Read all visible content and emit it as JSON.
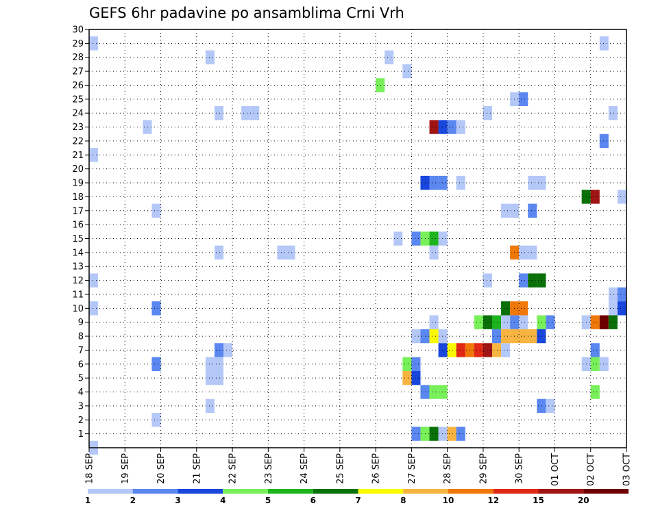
{
  "chart_data": {
    "type": "heatmap",
    "title": "GEFS 6hr padavine po ansamblima Crni Vrh",
    "xlabel": "",
    "ylabel": "",
    "x_ticks": [
      "18 SEP",
      "19 SEP",
      "20 SEP",
      "21 SEP",
      "22 SEP",
      "23 SEP",
      "24 SEP",
      "25 SEP",
      "26 SEP",
      "27 SEP",
      "28 SEP",
      "29 SEP",
      "30 SEP",
      "01 OCT",
      "02 OCT",
      "03 OCT"
    ],
    "y_ticks": [
      "1",
      "2",
      "3",
      "4",
      "5",
      "6",
      "7",
      "8",
      "9",
      "10",
      "11",
      "12",
      "13",
      "14",
      "15",
      "16",
      "17",
      "18",
      "19",
      "20",
      "21",
      "22",
      "23",
      "24",
      "25",
      "26",
      "27",
      "28",
      "29",
      "30"
    ],
    "xlim": [
      0,
      60
    ],
    "ylim": [
      0,
      30
    ],
    "grid": true,
    "colorbar": {
      "labels": [
        "1",
        "2",
        "3",
        "4",
        "5",
        "6",
        "7",
        "8",
        "10",
        "12",
        "15",
        "20"
      ],
      "colors": [
        "#b4c8f8",
        "#5a87f0",
        "#1946dc",
        "#78f05a",
        "#1eb41e",
        "#0a7008",
        "#fafa00",
        "#f8b440",
        "#f07808",
        "#e12814",
        "#a01414",
        "#6e0000"
      ]
    },
    "cells": [
      {
        "x": 0.5,
        "y": 29,
        "c": 0
      },
      {
        "x": 0.5,
        "y": 21,
        "c": 0
      },
      {
        "x": 0.5,
        "y": 12,
        "c": 0
      },
      {
        "x": 0.5,
        "y": 10,
        "c": 0
      },
      {
        "x": 0.5,
        "y": 0,
        "c": 0
      },
      {
        "x": 6.5,
        "y": 23,
        "c": 0
      },
      {
        "x": 7.5,
        "y": 17,
        "c": 0
      },
      {
        "x": 7.5,
        "y": 10,
        "c": 1
      },
      {
        "x": 7.5,
        "y": 6,
        "c": 1
      },
      {
        "x": 7.5,
        "y": 2,
        "c": 0
      },
      {
        "x": 13.5,
        "y": 28,
        "c": 0
      },
      {
        "x": 14.5,
        "y": 24,
        "c": 0
      },
      {
        "x": 14.5,
        "y": 14,
        "c": 0
      },
      {
        "x": 14.5,
        "y": 7,
        "c": 1
      },
      {
        "x": 15.5,
        "y": 7,
        "c": 0
      },
      {
        "x": 13.5,
        "y": 6,
        "c": 0
      },
      {
        "x": 14.5,
        "y": 6,
        "c": 0
      },
      {
        "x": 13.5,
        "y": 5,
        "c": 0
      },
      {
        "x": 14.5,
        "y": 5,
        "c": 0
      },
      {
        "x": 13.5,
        "y": 3,
        "c": 0
      },
      {
        "x": 17.5,
        "y": 24,
        "c": 0
      },
      {
        "x": 18.5,
        "y": 24,
        "c": 0
      },
      {
        "x": 21.5,
        "y": 14,
        "c": 0
      },
      {
        "x": 22.5,
        "y": 14,
        "c": 0
      },
      {
        "x": 32.5,
        "y": 26,
        "c": 3
      },
      {
        "x": 33.5,
        "y": 28,
        "c": 0
      },
      {
        "x": 35.5,
        "y": 27,
        "c": 0
      },
      {
        "x": 34.5,
        "y": 15,
        "c": 0
      },
      {
        "x": 38.5,
        "y": 23,
        "c": 10
      },
      {
        "x": 39.5,
        "y": 23,
        "c": 2
      },
      {
        "x": 40.5,
        "y": 23,
        "c": 1
      },
      {
        "x": 41.5,
        "y": 23,
        "c": 0
      },
      {
        "x": 37.5,
        "y": 19,
        "c": 2
      },
      {
        "x": 38.5,
        "y": 19,
        "c": 1
      },
      {
        "x": 39.5,
        "y": 19,
        "c": 1
      },
      {
        "x": 41.5,
        "y": 19,
        "c": 0
      },
      {
        "x": 36.5,
        "y": 15,
        "c": 1
      },
      {
        "x": 37.5,
        "y": 15,
        "c": 3
      },
      {
        "x": 38.5,
        "y": 15,
        "c": 4
      },
      {
        "x": 39.5,
        "y": 15,
        "c": 0
      },
      {
        "x": 38.5,
        "y": 14,
        "c": 0
      },
      {
        "x": 38.5,
        "y": 9,
        "c": 0
      },
      {
        "x": 36.5,
        "y": 8,
        "c": 0
      },
      {
        "x": 37.5,
        "y": 8,
        "c": 1
      },
      {
        "x": 38.5,
        "y": 8,
        "c": 6
      },
      {
        "x": 39.5,
        "y": 8,
        "c": 0
      },
      {
        "x": 39.5,
        "y": 7,
        "c": 2
      },
      {
        "x": 40.5,
        "y": 7,
        "c": 6
      },
      {
        "x": 41.5,
        "y": 7,
        "c": 9
      },
      {
        "x": 42.5,
        "y": 7,
        "c": 8
      },
      {
        "x": 43.5,
        "y": 7,
        "c": 9
      },
      {
        "x": 44.5,
        "y": 7,
        "c": 10
      },
      {
        "x": 45.5,
        "y": 7,
        "c": 7
      },
      {
        "x": 46.5,
        "y": 7,
        "c": 0
      },
      {
        "x": 35.5,
        "y": 6,
        "c": 3
      },
      {
        "x": 36.5,
        "y": 6,
        "c": 1
      },
      {
        "x": 35.5,
        "y": 5,
        "c": 7
      },
      {
        "x": 36.5,
        "y": 5,
        "c": 2
      },
      {
        "x": 37.5,
        "y": 4,
        "c": 1
      },
      {
        "x": 38.5,
        "y": 4,
        "c": 3
      },
      {
        "x": 39.5,
        "y": 4,
        "c": 3
      },
      {
        "x": 36.5,
        "y": 1,
        "c": 1
      },
      {
        "x": 37.5,
        "y": 1,
        "c": 3
      },
      {
        "x": 38.5,
        "y": 1,
        "c": 5
      },
      {
        "x": 39.5,
        "y": 1,
        "c": 0
      },
      {
        "x": 40.5,
        "y": 1,
        "c": 7
      },
      {
        "x": 41.5,
        "y": 1,
        "c": 1
      },
      {
        "x": 44.5,
        "y": 24,
        "c": 0
      },
      {
        "x": 47.5,
        "y": 25,
        "c": 0
      },
      {
        "x": 48.5,
        "y": 25,
        "c": 1
      },
      {
        "x": 49.5,
        "y": 19,
        "c": 0
      },
      {
        "x": 50.5,
        "y": 19,
        "c": 0
      },
      {
        "x": 46.5,
        "y": 17,
        "c": 0
      },
      {
        "x": 47.5,
        "y": 17,
        "c": 0
      },
      {
        "x": 49.5,
        "y": 17,
        "c": 1
      },
      {
        "x": 47.5,
        "y": 14,
        "c": 8
      },
      {
        "x": 48.5,
        "y": 14,
        "c": 0
      },
      {
        "x": 49.5,
        "y": 14,
        "c": 0
      },
      {
        "x": 44.5,
        "y": 12,
        "c": 0
      },
      {
        "x": 48.5,
        "y": 12,
        "c": 1
      },
      {
        "x": 49.5,
        "y": 12,
        "c": 5
      },
      {
        "x": 50.5,
        "y": 12,
        "c": 5
      },
      {
        "x": 46.5,
        "y": 10,
        "c": 5
      },
      {
        "x": 47.5,
        "y": 10,
        "c": 8
      },
      {
        "x": 48.5,
        "y": 10,
        "c": 8
      },
      {
        "x": 43.5,
        "y": 9,
        "c": 3
      },
      {
        "x": 44.5,
        "y": 9,
        "c": 5
      },
      {
        "x": 45.5,
        "y": 9,
        "c": 4
      },
      {
        "x": 46.5,
        "y": 9,
        "c": 0
      },
      {
        "x": 47.5,
        "y": 9,
        "c": 1
      },
      {
        "x": 48.5,
        "y": 9,
        "c": 0
      },
      {
        "x": 50.5,
        "y": 9,
        "c": 3
      },
      {
        "x": 51.5,
        "y": 9,
        "c": 1
      },
      {
        "x": 45.5,
        "y": 8,
        "c": 1
      },
      {
        "x": 46.5,
        "y": 8,
        "c": 7
      },
      {
        "x": 47.5,
        "y": 8,
        "c": 7
      },
      {
        "x": 48.5,
        "y": 8,
        "c": 7
      },
      {
        "x": 49.5,
        "y": 8,
        "c": 7
      },
      {
        "x": 50.5,
        "y": 8,
        "c": 2
      },
      {
        "x": 50.5,
        "y": 3,
        "c": 1
      },
      {
        "x": 51.5,
        "y": 3,
        "c": 0
      },
      {
        "x": 57.5,
        "y": 29,
        "c": 0
      },
      {
        "x": 58.5,
        "y": 24,
        "c": 0
      },
      {
        "x": 55.5,
        "y": 18,
        "c": 5
      },
      {
        "x": 56.5,
        "y": 18,
        "c": 10
      },
      {
        "x": 57.5,
        "y": 22,
        "c": 1
      },
      {
        "x": 59.5,
        "y": 18,
        "c": 0
      },
      {
        "x": 58.5,
        "y": 11,
        "c": 0
      },
      {
        "x": 59.5,
        "y": 11,
        "c": 1
      },
      {
        "x": 58.5,
        "y": 10,
        "c": 0
      },
      {
        "x": 59.5,
        "y": 10,
        "c": 2
      },
      {
        "x": 55.5,
        "y": 9,
        "c": 0
      },
      {
        "x": 56.5,
        "y": 9,
        "c": 8
      },
      {
        "x": 57.5,
        "y": 9,
        "c": 11
      },
      {
        "x": 58.5,
        "y": 9,
        "c": 5
      },
      {
        "x": 56.5,
        "y": 7,
        "c": 1
      },
      {
        "x": 55.5,
        "y": 6,
        "c": 0
      },
      {
        "x": 56.5,
        "y": 6,
        "c": 3
      },
      {
        "x": 57.5,
        "y": 6,
        "c": 0
      },
      {
        "x": 56.5,
        "y": 4,
        "c": 3
      }
    ]
  }
}
